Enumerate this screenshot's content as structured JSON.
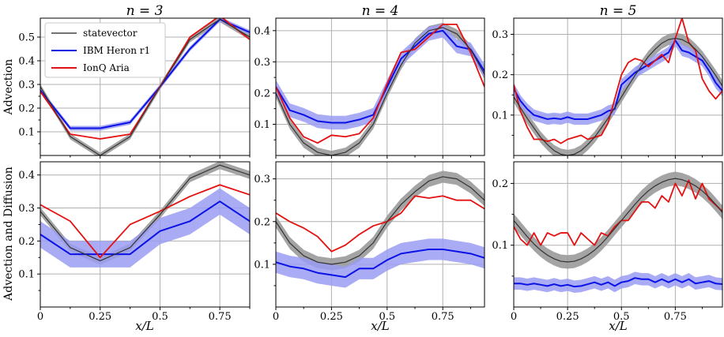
{
  "chart_data": {
    "type": "line",
    "figure": {
      "column_titles": [
        "n = 3",
        "n = 4",
        "n = 5"
      ],
      "row_labels": [
        "Advection",
        "Advection and Diffusion"
      ],
      "xlabel": "x/L",
      "x_tick_labels": [
        "0",
        "0.25",
        "0.5",
        "0.75"
      ],
      "legend": {
        "location": "upper-left of first panel",
        "entries": [
          {
            "name": "statevector",
            "color": "#444444"
          },
          {
            "name": "IBM Heron r1",
            "color": "#0000ee"
          },
          {
            "name": "IonQ Aria",
            "color": "#ee0000"
          }
        ]
      },
      "colors": {
        "statevector": "#333333",
        "statevector_band": "#9a9a9a",
        "ibm": "#0a12e6",
        "ibm_band": "#9a9cf2",
        "ionq": "#e51010",
        "grid": "#b0b0b0"
      }
    },
    "panels": [
      {
        "row": 0,
        "col": 0,
        "n": 3,
        "xlim": [
          0,
          0.875
        ],
        "ylim": [
          0,
          0.58
        ],
        "yticks": [
          0.1,
          0.2,
          0.3,
          0.4,
          0.5
        ],
        "y_tick_labels": [
          "0.1",
          "0.2",
          "0.3",
          "0.4",
          "0.5"
        ],
        "x": [
          0,
          0.125,
          0.25,
          0.375,
          0.5,
          0.625,
          0.75,
          0.875
        ],
        "series": [
          {
            "name": "statevector",
            "values": [
              0.29,
              0.08,
              0.0,
              0.08,
              0.29,
              0.49,
              0.575,
              0.5
            ],
            "band": 0.012
          },
          {
            "name": "IBM Heron r1",
            "values": [
              0.275,
              0.115,
              0.115,
              0.14,
              0.29,
              0.45,
              0.575,
              0.52
            ],
            "band": 0.01
          },
          {
            "name": "IonQ Aria",
            "values": [
              0.27,
              0.09,
              0.07,
              0.09,
              0.29,
              0.5,
              0.59,
              0.49
            ]
          }
        ]
      },
      {
        "row": 0,
        "col": 1,
        "n": 4,
        "xlim": [
          0,
          0.9375
        ],
        "ylim": [
          0,
          0.44
        ],
        "yticks": [
          0.1,
          0.2,
          0.3,
          0.4
        ],
        "y_tick_labels": [
          "0.1",
          "0.2",
          "0.3",
          "0.4"
        ],
        "x": [
          0,
          0.0625,
          0.125,
          0.1875,
          0.25,
          0.3125,
          0.375,
          0.4375,
          0.5,
          0.5625,
          0.625,
          0.6875,
          0.75,
          0.8125,
          0.875,
          0.9375
        ],
        "series": [
          {
            "name": "statevector",
            "values": [
              0.2,
              0.1,
              0.04,
              0.01,
              0.0,
              0.01,
              0.04,
              0.1,
              0.2,
              0.29,
              0.36,
              0.4,
              0.41,
              0.39,
              0.34,
              0.26
            ],
            "band": 0.015
          },
          {
            "name": "IBM Heron r1",
            "values": [
              0.22,
              0.145,
              0.13,
              0.11,
              0.105,
              0.105,
              0.115,
              0.13,
              0.22,
              0.31,
              0.35,
              0.39,
              0.4,
              0.35,
              0.34,
              0.27
            ],
            "band": 0.022
          },
          {
            "name": "IonQ Aria",
            "values": [
              0.22,
              0.12,
              0.06,
              0.04,
              0.065,
              0.06,
              0.07,
              0.12,
              0.23,
              0.33,
              0.34,
              0.38,
              0.42,
              0.42,
              0.33,
              0.22
            ]
          }
        ]
      },
      {
        "row": 0,
        "col": 2,
        "n": 5,
        "xlim": [
          0,
          0.96875
        ],
        "ylim": [
          0,
          0.34
        ],
        "yticks": [
          0.1,
          0.2,
          0.3
        ],
        "y_tick_labels": [
          "0.1",
          "0.2",
          "0.3"
        ],
        "x": [
          0,
          0.03125,
          0.0625,
          0.09375,
          0.125,
          0.15625,
          0.1875,
          0.21875,
          0.25,
          0.28125,
          0.3125,
          0.34375,
          0.375,
          0.40625,
          0.4375,
          0.46875,
          0.5,
          0.53125,
          0.5625,
          0.59375,
          0.625,
          0.65625,
          0.6875,
          0.71875,
          0.75,
          0.78125,
          0.8125,
          0.84375,
          0.875,
          0.90625,
          0.9375,
          0.96875
        ],
        "series": [
          {
            "name": "statevector",
            "values": [
              0.145,
              0.118,
              0.092,
              0.068,
              0.045,
              0.027,
              0.012,
              0.003,
              0.0,
              0.003,
              0.012,
              0.027,
              0.045,
              0.068,
              0.092,
              0.118,
              0.145,
              0.172,
              0.198,
              0.222,
              0.245,
              0.263,
              0.278,
              0.287,
              0.29,
              0.287,
              0.278,
              0.263,
              0.245,
              0.222,
              0.198,
              0.172
            ],
            "band": 0.014
          },
          {
            "name": "IBM Heron r1",
            "values": [
              0.165,
              0.135,
              0.115,
              0.1,
              0.095,
              0.09,
              0.092,
              0.09,
              0.095,
              0.09,
              0.09,
              0.09,
              0.095,
              0.1,
              0.11,
              0.115,
              0.175,
              0.19,
              0.205,
              0.215,
              0.225,
              0.235,
              0.245,
              0.255,
              0.285,
              0.26,
              0.255,
              0.245,
              0.235,
              0.21,
              0.18,
              0.16
            ],
            "band": 0.014
          },
          {
            "name": "IonQ Aria",
            "values": [
              0.175,
              0.11,
              0.07,
              0.04,
              0.04,
              0.035,
              0.04,
              0.03,
              0.04,
              0.045,
              0.05,
              0.04,
              0.045,
              0.05,
              0.08,
              0.14,
              0.2,
              0.23,
              0.24,
              0.235,
              0.22,
              0.235,
              0.25,
              0.23,
              0.29,
              0.34,
              0.28,
              0.26,
              0.19,
              0.16,
              0.14,
              0.16
            ]
          }
        ]
      },
      {
        "row": 1,
        "col": 0,
        "n": 3,
        "xlim": [
          0,
          0.875
        ],
        "ylim": [
          0,
          0.44
        ],
        "yticks": [
          0.1,
          0.2,
          0.3,
          0.4
        ],
        "y_tick_labels": [
          "0.1",
          "0.2",
          "0.3",
          "0.4"
        ],
        "x": [
          0,
          0.125,
          0.25,
          0.375,
          0.5,
          0.625,
          0.75,
          0.875
        ],
        "series": [
          {
            "name": "statevector",
            "values": [
              0.29,
              0.18,
              0.14,
              0.18,
              0.28,
              0.39,
              0.43,
              0.4
            ],
            "band": 0.012
          },
          {
            "name": "IBM Heron r1",
            "values": [
              0.22,
              0.16,
              0.16,
              0.16,
              0.23,
              0.26,
              0.32,
              0.26
            ],
            "band": 0.04
          },
          {
            "name": "IonQ Aria",
            "values": [
              0.31,
              0.26,
              0.15,
              0.25,
              0.29,
              0.335,
              0.37,
              0.34
            ]
          }
        ]
      },
      {
        "row": 1,
        "col": 1,
        "n": 4,
        "xlim": [
          0,
          0.9375
        ],
        "ylim": [
          0,
          0.34
        ],
        "yticks": [
          0.1,
          0.2,
          0.3
        ],
        "y_tick_labels": [
          "0.1",
          "0.2",
          "0.3"
        ],
        "x": [
          0,
          0.0625,
          0.125,
          0.1875,
          0.25,
          0.3125,
          0.375,
          0.4375,
          0.5,
          0.5625,
          0.625,
          0.6875,
          0.75,
          0.8125,
          0.875,
          0.9375
        ],
        "series": [
          {
            "name": "statevector",
            "values": [
              0.2,
              0.15,
              0.12,
              0.105,
              0.1,
              0.105,
              0.12,
              0.15,
              0.2,
              0.24,
              0.27,
              0.295,
              0.305,
              0.3,
              0.28,
              0.25
            ],
            "band": 0.014
          },
          {
            "name": "IBM Heron r1",
            "values": [
              0.105,
              0.095,
              0.09,
              0.08,
              0.075,
              0.07,
              0.09,
              0.09,
              0.11,
              0.125,
              0.13,
              0.135,
              0.135,
              0.13,
              0.125,
              0.115
            ],
            "band": 0.025
          },
          {
            "name": "IonQ Aria",
            "values": [
              0.22,
              0.2,
              0.185,
              0.165,
              0.13,
              0.145,
              0.17,
              0.19,
              0.2,
              0.22,
              0.26,
              0.255,
              0.26,
              0.25,
              0.25,
              0.23
            ]
          }
        ]
      },
      {
        "row": 1,
        "col": 2,
        "n": 5,
        "xlim": [
          0,
          0.96875
        ],
        "ylim": [
          0,
          0.235
        ],
        "yticks": [
          0.1,
          0.2
        ],
        "y_tick_labels": [
          "0.1",
          "0.2"
        ],
        "x": [
          0,
          0.03125,
          0.0625,
          0.09375,
          0.125,
          0.15625,
          0.1875,
          0.21875,
          0.25,
          0.28125,
          0.3125,
          0.34375,
          0.375,
          0.40625,
          0.4375,
          0.46875,
          0.5,
          0.53125,
          0.5625,
          0.59375,
          0.625,
          0.65625,
          0.6875,
          0.71875,
          0.75,
          0.78125,
          0.8125,
          0.84375,
          0.875,
          0.90625,
          0.9375,
          0.96875
        ],
        "series": [
          {
            "name": "statevector",
            "values": [
              0.14,
              0.127,
              0.114,
              0.102,
              0.092,
              0.084,
              0.078,
              0.074,
              0.073,
              0.074,
              0.078,
              0.084,
              0.092,
              0.102,
              0.114,
              0.127,
              0.14,
              0.153,
              0.166,
              0.178,
              0.188,
              0.196,
              0.202,
              0.206,
              0.208,
              0.206,
              0.202,
              0.196,
              0.188,
              0.178,
              0.166,
              0.153
            ],
            "band": 0.011
          },
          {
            "name": "IBM Heron r1",
            "values": [
              0.038,
              0.038,
              0.036,
              0.038,
              0.036,
              0.034,
              0.037,
              0.034,
              0.036,
              0.033,
              0.034,
              0.037,
              0.04,
              0.036,
              0.04,
              0.034,
              0.04,
              0.042,
              0.047,
              0.045,
              0.045,
              0.04,
              0.045,
              0.04,
              0.045,
              0.04,
              0.045,
              0.038,
              0.04,
              0.042,
              0.038,
              0.037
            ],
            "band": 0.01
          },
          {
            "name": "IonQ Aria",
            "values": [
              0.13,
              0.11,
              0.1,
              0.12,
              0.1,
              0.12,
              0.115,
              0.12,
              0.12,
              0.1,
              0.12,
              0.11,
              0.1,
              0.12,
              0.115,
              0.13,
              0.14,
              0.14,
              0.155,
              0.17,
              0.17,
              0.16,
              0.18,
              0.17,
              0.2,
              0.18,
              0.205,
              0.175,
              0.2,
              0.175,
              0.165,
              0.155
            ]
          }
        ]
      }
    ]
  }
}
